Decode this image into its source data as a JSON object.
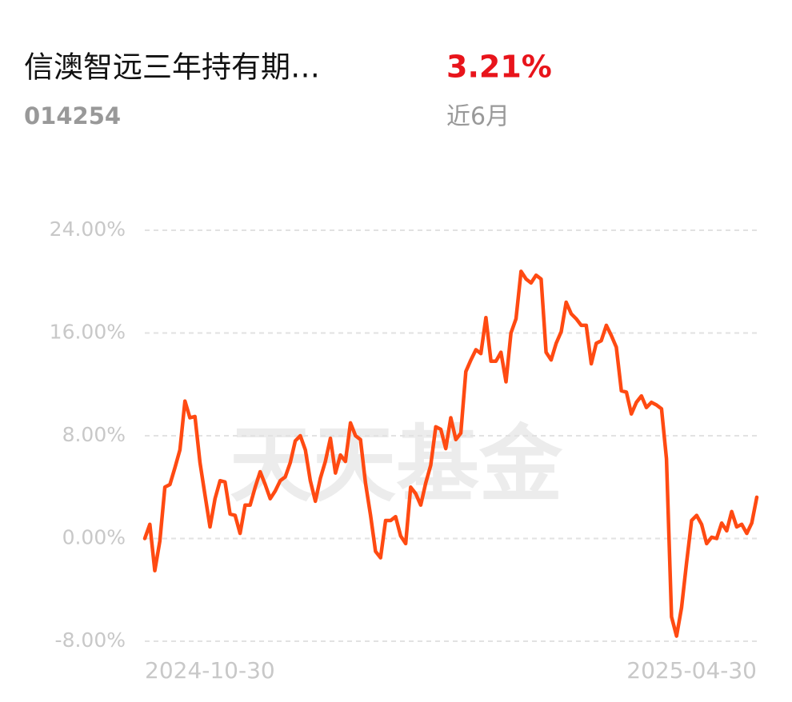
{
  "header": {
    "name": "信澳智远三年持有期…",
    "code": "014254",
    "return": "3.21%",
    "period": "近6月"
  },
  "chart_data": {
    "type": "line",
    "watermark": "天天基金",
    "categories": [
      "2024-10-30",
      null,
      null,
      null,
      null,
      null,
      null,
      null,
      null,
      null,
      null,
      null,
      null,
      null,
      null,
      null,
      null,
      null,
      null,
      null,
      null,
      null,
      null,
      null,
      null,
      null,
      null,
      null,
      null,
      null,
      null,
      null,
      null,
      null,
      null,
      null,
      null,
      null,
      null,
      null,
      null,
      null,
      null,
      null,
      null,
      null,
      null,
      null,
      null,
      null,
      null,
      null,
      null,
      null,
      null,
      null,
      null,
      null,
      null,
      null,
      null,
      null,
      null,
      null,
      null,
      null,
      null,
      null,
      null,
      null,
      null,
      null,
      null,
      null,
      null,
      null,
      null,
      null,
      null,
      null,
      null,
      null,
      null,
      null,
      null,
      null,
      null,
      null,
      null,
      null,
      null,
      null,
      null,
      null,
      null,
      null,
      null,
      null,
      null,
      null,
      null,
      null,
      null,
      null,
      null,
      null,
      null,
      null,
      null,
      null,
      null,
      null,
      null,
      null,
      null,
      null,
      null,
      null,
      null,
      null,
      null,
      null,
      "2025-04-30"
    ],
    "values": [
      0,
      1.1,
      -2.5,
      -0.2,
      4.0,
      4.2,
      5.5,
      6.9,
      10.7,
      9.4,
      9.5,
      5.9,
      3.4,
      0.9,
      3.1,
      4.5,
      4.4,
      1.9,
      1.8,
      0.4,
      2.6,
      2.6,
      4.0,
      5.2,
      4.2,
      3.1,
      3.7,
      4.5,
      4.8,
      5.9,
      7.6,
      8.0,
      6.9,
      4.5,
      2.9,
      4.7,
      6.0,
      7.8,
      5.1,
      6.5,
      6.0,
      9.0,
      8.0,
      7.7,
      4.3,
      1.8,
      -1.0,
      -1.5,
      1.4,
      1.4,
      1.7,
      0.2,
      -0.4,
      4.0,
      3.5,
      2.6,
      4.3,
      5.7,
      8.7,
      8.5,
      7.0,
      9.4,
      7.7,
      8.2,
      13.0,
      13.9,
      14.7,
      14.4,
      17.2,
      13.8,
      13.8,
      14.5,
      12.2,
      16.0,
      17.1,
      20.8,
      20.2,
      19.9,
      20.5,
      20.2,
      14.5,
      13.9,
      15.2,
      16.1,
      18.4,
      17.5,
      17.1,
      16.6,
      16.6,
      13.6,
      15.2,
      15.4,
      16.6,
      15.8,
      14.9,
      11.5,
      11.4,
      9.7,
      10.6,
      11.1,
      10.2,
      10.6,
      10.4,
      10.1,
      6.2,
      -6.1,
      -7.6,
      -5.4,
      -1.9,
      1.4,
      1.8,
      1.1,
      -0.4,
      0.1,
      0.0,
      1.2,
      0.6,
      2.1,
      0.9,
      1.1,
      0.4,
      1.2,
      3.21
    ],
    "color": "#ff4a12",
    "ylim": [
      -8,
      24
    ],
    "yticks": [
      {
        "value": -8,
        "label": "-8.00%"
      },
      {
        "value": 0,
        "label": "0.00%"
      },
      {
        "value": 8,
        "label": "8.00%"
      },
      {
        "value": 16,
        "label": "16.00%"
      },
      {
        "value": 24,
        "label": "24.00%"
      }
    ],
    "grid": true
  }
}
